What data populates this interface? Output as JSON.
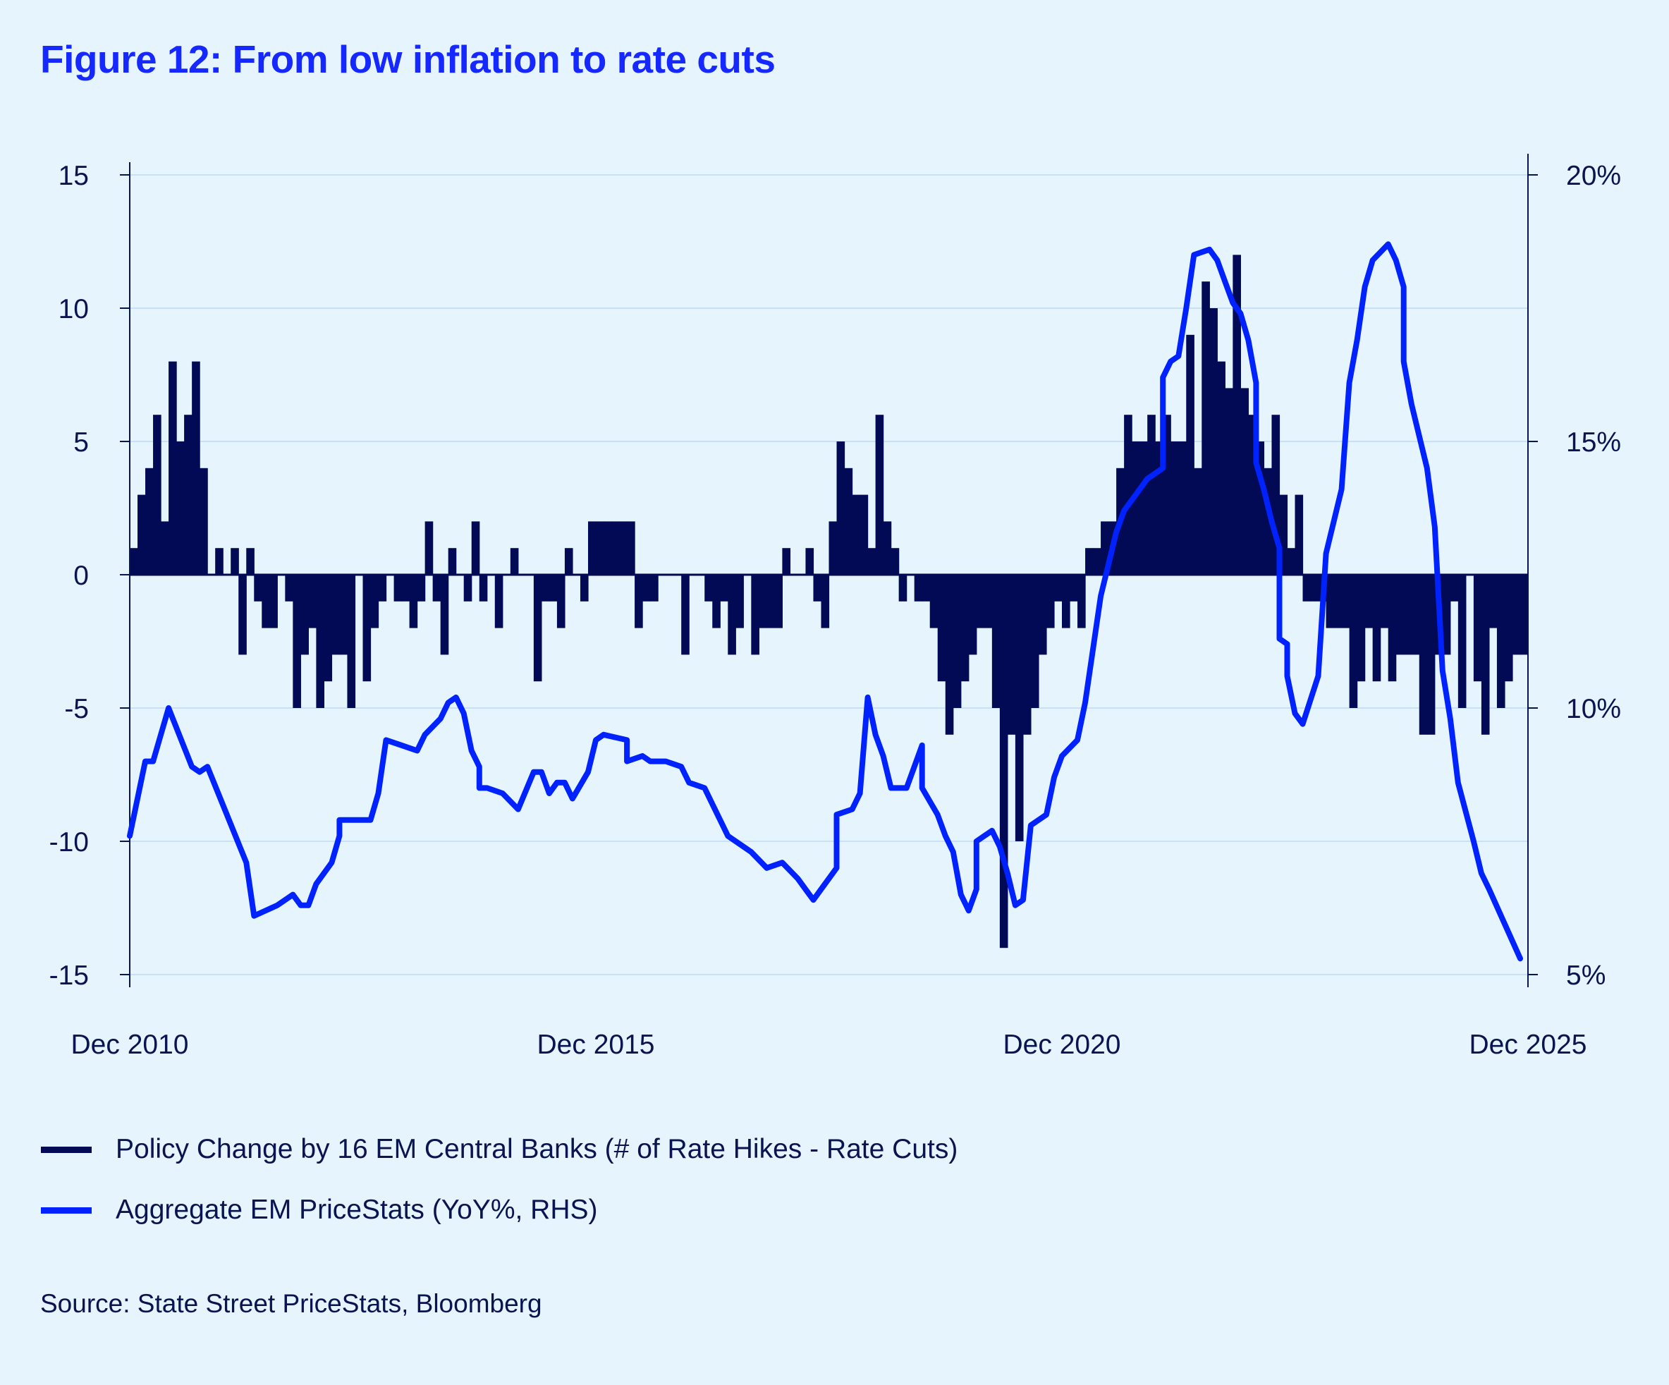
{
  "title": "Figure 12: From low inflation to rate cuts",
  "source": "Source: State Street PriceStats, Bloomberg",
  "colors": {
    "background": "#e6f4fe",
    "bars": "#020a56",
    "line": "#0022ff",
    "title": "#1428ff",
    "grid": "#c7e2f8"
  },
  "chart_data": {
    "type": "bar+line",
    "title": "Figure 12: From low inflation to rate cuts",
    "x_ticks": [
      "Dec 2010",
      "Dec 2015",
      "Dec 2020",
      "Dec 2025"
    ],
    "x_range": [
      "2010-12",
      "2025-12"
    ],
    "y_left": {
      "range": [
        -15,
        15
      ],
      "ticks": [
        "15",
        "10",
        "5",
        "0",
        "-5",
        "-10",
        "-15"
      ]
    },
    "y_right": {
      "range": [
        5,
        20
      ],
      "ticks": [
        "20%",
        "15%",
        "10%",
        "5%"
      ]
    },
    "grid": true,
    "legend_position": "bottom",
    "series": [
      {
        "name": "Policy Change by 16 EM Central Banks (# of Rate Hikes - Rate Cuts)",
        "type": "bar",
        "axis": "left",
        "color": "#020a56",
        "monthly_values_by_year": {
          "2010": [
            null,
            null,
            null,
            null,
            null,
            null,
            null,
            null,
            null,
            null,
            null,
            1
          ],
          "2011": [
            3,
            4,
            6,
            2,
            8,
            5,
            6,
            8,
            4,
            0,
            1,
            0
          ],
          "2012": [
            1,
            -3,
            1,
            -1,
            -2,
            -2,
            0,
            -1,
            -5,
            -3,
            -2,
            -5
          ],
          "2013": [
            -4,
            -3,
            -3,
            -5,
            0,
            -4,
            -2,
            -1,
            0,
            -1,
            -1,
            -2
          ],
          "2014": [
            -1,
            2,
            -1,
            -3,
            1,
            0,
            -1,
            2,
            -1,
            0,
            -2,
            0
          ],
          "2015": [
            1,
            0,
            0,
            -4,
            -1,
            -1,
            -2,
            1,
            0,
            -1,
            2,
            2
          ],
          "2016": [
            2,
            2,
            2,
            2,
            -2,
            -1,
            -1,
            0,
            0,
            0,
            -3,
            0
          ],
          "2017": [
            0,
            -1,
            -2,
            -1,
            -3,
            -2,
            0,
            -3,
            -2,
            -2,
            -2,
            1
          ],
          "2018": [
            0,
            0,
            1,
            -1,
            -2,
            2,
            5,
            4,
            3,
            3,
            1,
            6
          ],
          "2019": [
            2,
            1,
            -1,
            0,
            -1,
            -1,
            -2,
            -4,
            -6,
            -5,
            -4,
            -3
          ],
          "2020": [
            -2,
            -2,
            -5,
            -14,
            -6,
            -10,
            -6,
            -5,
            -3,
            -2,
            -1,
            -2
          ],
          "2021": [
            -1,
            -2,
            1,
            1,
            2,
            2,
            4,
            6,
            5,
            5,
            6,
            5
          ],
          "2022": [
            6,
            5,
            5,
            9,
            4,
            11,
            10,
            8,
            7,
            12,
            7,
            6
          ],
          "2023": [
            5,
            4,
            6,
            3,
            1,
            3,
            -1,
            -1,
            -1,
            -2,
            -2,
            -2
          ],
          "2024": [
            -5,
            -4,
            -2,
            -4,
            -2,
            -4,
            -3,
            -3,
            -3,
            -6,
            -6,
            -3
          ],
          "2025": [
            -3,
            -1,
            -5,
            0,
            -4,
            -6,
            -2,
            -5,
            -4,
            -3,
            -3,
            null
          ]
        }
      },
      {
        "name": "Aggregate EM PriceStats (YoY%, RHS)",
        "type": "line",
        "axis": "right",
        "color": "#0022ff",
        "points": [
          [
            "2010-12",
            7.6
          ],
          [
            "2011-02",
            9.0
          ],
          [
            "2011-03",
            9.0
          ],
          [
            "2011-05",
            10.0
          ],
          [
            "2011-08",
            8.9
          ],
          [
            "2011-09",
            8.8
          ],
          [
            "2011-10",
            8.9
          ],
          [
            "2012-03",
            7.1
          ],
          [
            "2012-04",
            6.1
          ],
          [
            "2012-07",
            6.3
          ],
          [
            "2012-08",
            6.4
          ],
          [
            "2012-09",
            6.5
          ],
          [
            "2012-10",
            6.3
          ],
          [
            "2012-11",
            6.3
          ],
          [
            "2012-12",
            6.7
          ],
          [
            "2013-02",
            7.1
          ],
          [
            "2013-03",
            7.6
          ],
          [
            "2013-03",
            7.9
          ],
          [
            "2013-07",
            7.9
          ],
          [
            "2013-08",
            8.4
          ],
          [
            "2013-09",
            9.4
          ],
          [
            "2013-11",
            9.3
          ],
          [
            "2014-01",
            9.2
          ],
          [
            "2014-02",
            9.5
          ],
          [
            "2014-04",
            9.8
          ],
          [
            "2014-05",
            10.1
          ],
          [
            "2014-06",
            10.2
          ],
          [
            "2014-07",
            9.9
          ],
          [
            "2014-08",
            9.2
          ],
          [
            "2014-09",
            8.9
          ],
          [
            "2014-09",
            8.5
          ],
          [
            "2014-10",
            8.5
          ],
          [
            "2014-12",
            8.4
          ],
          [
            "2015-02",
            8.1
          ],
          [
            "2015-04",
            8.8
          ],
          [
            "2015-05",
            8.8
          ],
          [
            "2015-06",
            8.4
          ],
          [
            "2015-07",
            8.6
          ],
          [
            "2015-08",
            8.6
          ],
          [
            "2015-09",
            8.3
          ],
          [
            "2015-11",
            8.8
          ],
          [
            "2015-12",
            9.4
          ],
          [
            "2016-01",
            9.5
          ],
          [
            "2016-04",
            9.4
          ],
          [
            "2016-04",
            9.0
          ],
          [
            "2016-06",
            9.1
          ],
          [
            "2016-07",
            9.0
          ],
          [
            "2016-09",
            9.0
          ],
          [
            "2016-11",
            8.9
          ],
          [
            "2016-12",
            8.6
          ],
          [
            "2017-02",
            8.5
          ],
          [
            "2017-05",
            7.6
          ],
          [
            "2017-08",
            7.3
          ],
          [
            "2017-10",
            7.0
          ],
          [
            "2017-12",
            7.1
          ],
          [
            "2018-02",
            6.8
          ],
          [
            "2018-04",
            6.4
          ],
          [
            "2018-05",
            6.6
          ],
          [
            "2018-07",
            7.0
          ],
          [
            "2018-07",
            8.0
          ],
          [
            "2018-09",
            8.1
          ],
          [
            "2018-10",
            8.4
          ],
          [
            "2018-11",
            10.2
          ],
          [
            "2018-12",
            9.5
          ],
          [
            "2019-01",
            9.1
          ],
          [
            "2019-02",
            8.5
          ],
          [
            "2019-04",
            8.5
          ],
          [
            "2019-05",
            8.9
          ],
          [
            "2019-06",
            9.3
          ],
          [
            "2019-06",
            8.5
          ],
          [
            "2019-08",
            8.0
          ],
          [
            "2019-09",
            7.6
          ],
          [
            "2019-10",
            7.3
          ],
          [
            "2019-11",
            6.5
          ],
          [
            "2019-12",
            6.2
          ],
          [
            "2020-01",
            6.6
          ],
          [
            "2020-01",
            7.5
          ],
          [
            "2020-03",
            7.7
          ],
          [
            "2020-04",
            7.4
          ],
          [
            "2020-05",
            6.9
          ],
          [
            "2020-06",
            6.3
          ],
          [
            "2020-07",
            6.4
          ],
          [
            "2020-08",
            7.8
          ],
          [
            "2020-10",
            8.0
          ],
          [
            "2020-11",
            8.7
          ],
          [
            "2020-12",
            9.1
          ],
          [
            "2021-02",
            9.4
          ],
          [
            "2021-03",
            10.1
          ],
          [
            "2021-05",
            12.1
          ],
          [
            "2021-06",
            12.7
          ],
          [
            "2021-07",
            13.3
          ],
          [
            "2021-08",
            13.7
          ],
          [
            "2021-11",
            14.3
          ],
          [
            "2022-01",
            14.5
          ],
          [
            "2022-01",
            16.2
          ],
          [
            "2022-02",
            16.5
          ],
          [
            "2022-03",
            16.6
          ],
          [
            "2022-04",
            17.5
          ],
          [
            "2022-05",
            18.5
          ],
          [
            "2022-07",
            18.6
          ],
          [
            "2022-08",
            18.4
          ],
          [
            "2022-09",
            18.0
          ],
          [
            "2022-10",
            17.6
          ],
          [
            "2022-11",
            17.4
          ],
          [
            "2022-12",
            16.9
          ],
          [
            "2023-01",
            16.1
          ],
          [
            "2023-01",
            14.6
          ],
          [
            "2023-02",
            14.1
          ],
          [
            "2023-03",
            13.5
          ],
          [
            "2023-04",
            13.0
          ],
          [
            "2023-04",
            12.4
          ],
          [
            "2023-04",
            11.9
          ],
          [
            "2023-04",
            11.3
          ],
          [
            "2023-05",
            11.2
          ],
          [
            "2023-05",
            10.6
          ],
          [
            "2023-06",
            9.9
          ],
          [
            "2023-07",
            9.7
          ],
          [
            "2023-09",
            10.6
          ],
          [
            "2023-10",
            12.9
          ],
          [
            "2023-12",
            14.1
          ],
          [
            "2024-01",
            16.1
          ],
          [
            "2024-02",
            16.9
          ],
          [
            "2024-03",
            17.9
          ],
          [
            "2024-04",
            18.4
          ],
          [
            "2024-06",
            18.7
          ],
          [
            "2024-07",
            18.4
          ],
          [
            "2024-08",
            17.9
          ],
          [
            "2024-08",
            17.3
          ],
          [
            "2024-08",
            16.5
          ],
          [
            "2024-09",
            15.7
          ],
          [
            "2024-11",
            14.5
          ],
          [
            "2024-12",
            13.4
          ],
          [
            "2025-01",
            10.7
          ],
          [
            "2025-02",
            9.8
          ],
          [
            "2025-03",
            8.6
          ],
          [
            "2025-05",
            7.5
          ],
          [
            "2025-06",
            6.9
          ],
          [
            "2025-07",
            6.6
          ],
          [
            "2025-11",
            5.3
          ]
        ]
      }
    ]
  }
}
